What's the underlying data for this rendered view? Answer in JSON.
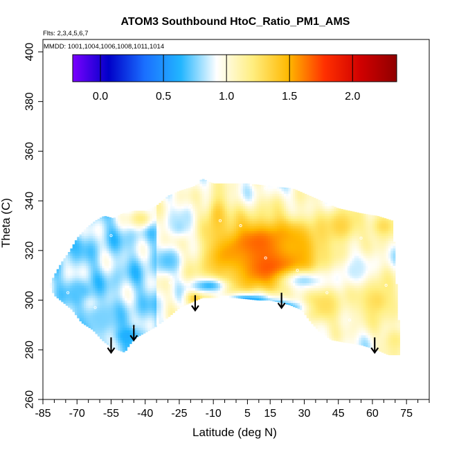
{
  "chart_data": {
    "type": "heatmap",
    "title": "ATOM3 Southbound HtoC_Ratio_PM1_AMS",
    "flights_note": "Flts: 2,3,4,5,6,7",
    "dates_note": "MMDD: 1001,1004,1006,1008,1011,1014",
    "xlabel": "Latitude (deg N)",
    "ylabel": "Theta (C)",
    "xlim": [
      -85,
      85
    ],
    "ylim": [
      260,
      405
    ],
    "x_ticks": [
      -85,
      -70,
      -55,
      -40,
      -25,
      -10,
      5,
      15,
      30,
      45,
      60,
      75
    ],
    "x_tick_labels": [
      "-85",
      "-70",
      "-55",
      "-40",
      "-25",
      "-10",
      "5",
      "15",
      "30",
      "45",
      "60",
      "75"
    ],
    "y_ticks": [
      260,
      280,
      300,
      320,
      340,
      360,
      380,
      400
    ],
    "y_tick_labels": [
      "260",
      "280",
      "300",
      "320",
      "340",
      "360",
      "380",
      "400"
    ],
    "colorbar": {
      "range": [
        -0.22,
        2.35
      ],
      "ticks": [
        0.0,
        0.5,
        1.0,
        1.5,
        2.0
      ],
      "tick_labels": [
        "0.0",
        "0.5",
        "1.0",
        "1.5",
        "2.0"
      ],
      "colors": [
        "#7a00ff",
        "#0000c8",
        "#1a6fff",
        "#22b5ff",
        "#ffffff",
        "#ffee80",
        "#ffb800",
        "#ff3000",
        "#d00000",
        "#900000"
      ]
    },
    "field_boundary": {
      "upper": [
        [
          -82,
          306
        ],
        [
          -80,
          310
        ],
        [
          -77,
          315
        ],
        [
          -73,
          320
        ],
        [
          -70,
          325
        ],
        [
          -66,
          329
        ],
        [
          -62,
          332
        ],
        [
          -58,
          334
        ],
        [
          -54,
          333
        ],
        [
          -50,
          335
        ],
        [
          -45,
          336
        ],
        [
          -40,
          336
        ],
        [
          -35,
          338
        ],
        [
          -30,
          342
        ],
        [
          -25,
          344
        ],
        [
          -18,
          346
        ],
        [
          -15,
          349
        ],
        [
          -10,
          347
        ],
        [
          -5,
          347
        ],
        [
          5,
          347
        ],
        [
          15,
          346
        ],
        [
          25,
          345
        ],
        [
          35,
          341
        ],
        [
          45,
          337
        ],
        [
          55,
          335
        ],
        [
          62,
          334
        ],
        [
          69,
          332
        ],
        [
          70,
          315
        ],
        [
          71,
          298
        ],
        [
          72,
          286
        ],
        [
          72,
          278
        ]
      ],
      "lower": [
        [
          -82,
          306
        ],
        [
          -80,
          302
        ],
        [
          -76,
          299
        ],
        [
          -72,
          296
        ],
        [
          -68,
          291
        ],
        [
          -63,
          288
        ],
        [
          -59,
          284
        ],
        [
          -55,
          281
        ],
        [
          -52,
          280
        ],
        [
          -49,
          279
        ],
        [
          -47,
          282
        ],
        [
          -44,
          285
        ],
        [
          -40,
          287
        ],
        [
          -36,
          289
        ],
        [
          -30,
          293
        ],
        [
          -25,
          297
        ],
        [
          -20,
          299
        ],
        [
          -15,
          301
        ],
        [
          -10,
          301
        ],
        [
          0,
          301
        ],
        [
          10,
          300
        ],
        [
          15,
          300
        ],
        [
          20,
          299
        ],
        [
          24,
          298
        ],
        [
          29,
          296
        ],
        [
          33,
          291
        ],
        [
          37,
          287
        ],
        [
          42,
          284
        ],
        [
          48,
          283
        ],
        [
          55,
          282
        ],
        [
          62,
          280
        ],
        [
          67,
          278
        ],
        [
          72,
          278
        ]
      ]
    },
    "anomalies": [
      {
        "lat": 13,
        "theta": 317,
        "value": 2.05,
        "sx": 13,
        "sy": 8
      },
      {
        "lat": 12,
        "theta": 319,
        "value": 1.8,
        "sx": 22,
        "sy": 14
      },
      {
        "lat": 0,
        "theta": 316,
        "value": 1.55,
        "sx": 12,
        "sy": 10
      },
      {
        "lat": 25,
        "theta": 322,
        "value": 1.5,
        "sx": 12,
        "sy": 9
      },
      {
        "lat": -4,
        "theta": 310,
        "value": 1.35,
        "sx": 7,
        "sy": 5
      },
      {
        "lat": -8,
        "theta": 334,
        "value": 1.4,
        "sx": 5,
        "sy": 10
      },
      {
        "lat": -18,
        "theta": 301,
        "value": 1.4,
        "sx": 4,
        "sy": 3
      },
      {
        "lat": -42,
        "theta": 333,
        "value": 1.2,
        "sx": 6,
        "sy": 4
      },
      {
        "lat": 46,
        "theta": 330,
        "value": 1.35,
        "sx": 9,
        "sy": 8
      },
      {
        "lat": 65,
        "theta": 330,
        "value": 1.3,
        "sx": 7,
        "sy": 6
      },
      {
        "lat": 38,
        "theta": 298,
        "value": 1.3,
        "sx": 11,
        "sy": 8
      },
      {
        "lat": 62,
        "theta": 300,
        "value": 1.3,
        "sx": 10,
        "sy": 10
      },
      {
        "lat": 70,
        "theta": 284,
        "value": 1.2,
        "sx": 6,
        "sy": 6
      },
      {
        "lat": 5,
        "theta": 300,
        "value": 0.55,
        "sx": 10,
        "sy": 3
      },
      {
        "lat": 20,
        "theta": 297,
        "value": 0.5,
        "sx": 9,
        "sy": 3
      },
      {
        "lat": -12,
        "theta": 306,
        "value": 0.65,
        "sx": 8,
        "sy": 3
      },
      {
        "lat": -48,
        "theta": 286,
        "value": 0.6,
        "sx": 6,
        "sy": 4
      },
      {
        "lat": -60,
        "theta": 293,
        "value": 0.75,
        "sx": 10,
        "sy": 6
      },
      {
        "lat": -72,
        "theta": 322,
        "value": 0.65,
        "sx": 4,
        "sy": 3
      },
      {
        "lat": -68,
        "theta": 304,
        "value": 0.7,
        "sx": 6,
        "sy": 4
      },
      {
        "lat": -30,
        "theta": 316,
        "value": 0.7,
        "sx": 6,
        "sy": 5
      },
      {
        "lat": -25,
        "theta": 330,
        "value": 0.8,
        "sx": 5,
        "sy": 5
      },
      {
        "lat": 30,
        "theta": 308,
        "value": 0.8,
        "sx": 10,
        "sy": 4
      },
      {
        "lat": 52,
        "theta": 312,
        "value": 0.85,
        "sx": 6,
        "sy": 6
      }
    ],
    "sample_points": [
      {
        "lat": 13,
        "theta": 317
      },
      {
        "lat": 13,
        "theta": 345
      },
      {
        "lat": -29,
        "theta": 307
      },
      {
        "lat": -20,
        "theta": 338
      },
      {
        "lat": -41,
        "theta": 323
      },
      {
        "lat": -55,
        "theta": 326
      },
      {
        "lat": -74,
        "theta": 303
      },
      {
        "lat": -62,
        "theta": 297
      },
      {
        "lat": 27,
        "theta": 312
      },
      {
        "lat": 50,
        "theta": 292
      },
      {
        "lat": 55,
        "theta": 325
      },
      {
        "lat": 40,
        "theta": 303
      },
      {
        "lat": -7,
        "theta": 332
      },
      {
        "lat": -45,
        "theta": 289
      },
      {
        "lat": 66,
        "theta": 306
      },
      {
        "lat": 2,
        "theta": 330
      }
    ],
    "arrows": [
      {
        "lat": -55,
        "theta": 285
      },
      {
        "lat": -45,
        "theta": 290
      },
      {
        "lat": -18,
        "theta": 302
      },
      {
        "lat": 20,
        "theta": 303
      },
      {
        "lat": 61,
        "theta": 285
      }
    ]
  }
}
